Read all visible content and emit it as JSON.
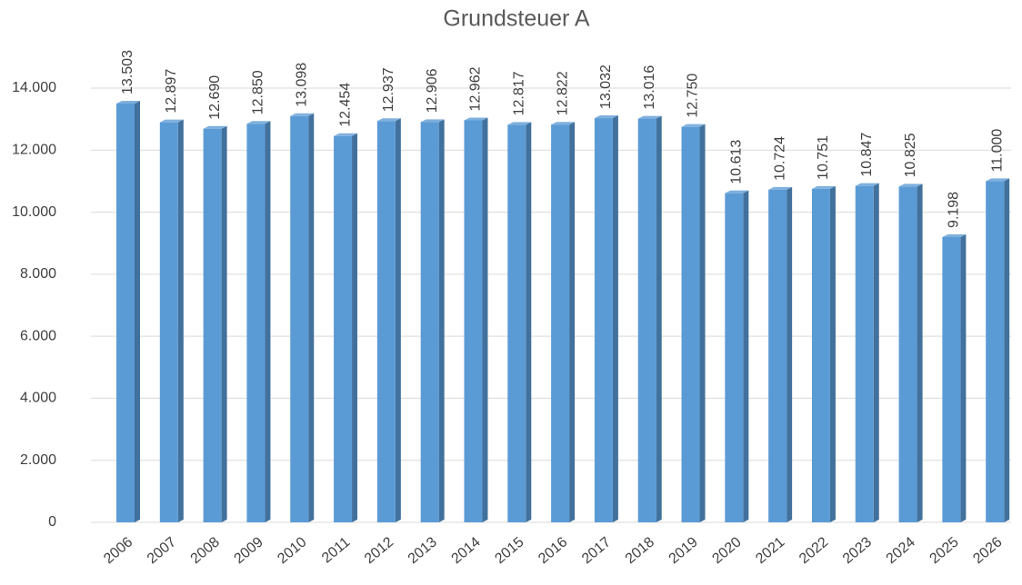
{
  "chart_data": {
    "type": "bar",
    "title": "Grundsteuer A",
    "categories": [
      "2006",
      "2007",
      "2008",
      "2009",
      "2010",
      "2011",
      "2012",
      "2013",
      "2014",
      "2015",
      "2016",
      "2017",
      "2018",
      "2019",
      "2020",
      "2021",
      "2022",
      "2023",
      "2024",
      "2025",
      "2026"
    ],
    "values": [
      13503,
      12897,
      12690,
      12850,
      13098,
      12454,
      12937,
      12906,
      12962,
      12817,
      12822,
      13032,
      13016,
      12750,
      10613,
      10724,
      10751,
      10847,
      10825,
      9198,
      11000
    ],
    "value_labels": [
      "13.503",
      "12.897",
      "12.690",
      "12.850",
      "13.098",
      "12.454",
      "12.937",
      "12.906",
      "12.962",
      "12.817",
      "12.822",
      "13.032",
      "13.016",
      "12.750",
      "10.613",
      "10.724",
      "10.751",
      "10.847",
      "10.825",
      "9.198",
      "11.000"
    ],
    "color": "#5b9bd5",
    "ylim": [
      0,
      14000
    ],
    "yticks": [
      0,
      {
        "value": 2000,
        "label": "2.000"
      },
      {
        "value": 4000,
        "label": "4.000"
      },
      {
        "value": 6000,
        "label": "6.000"
      },
      {
        "value": 8000,
        "label": "8.000"
      },
      {
        "value": 10000,
        "label": "10.000"
      },
      {
        "value": 12000,
        "label": "12.000"
      },
      {
        "value": 14000,
        "label": "14.000"
      }
    ],
    "grid": true
  }
}
